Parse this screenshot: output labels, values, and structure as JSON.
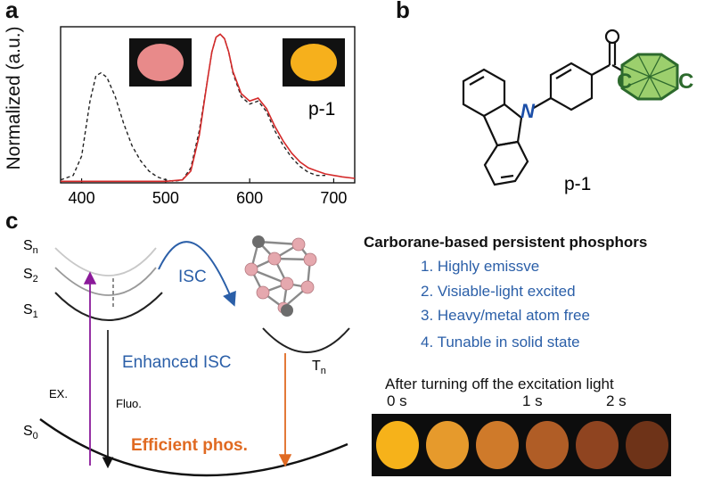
{
  "panel_a": {
    "letter": "a",
    "ylabel": "Normalized  (a.u.)",
    "sample_label": "p-1",
    "colors": {
      "emission": "#d42a2a",
      "excitation": "#222222",
      "pink_powder": "#e88a8a",
      "yellow_powder": "#f6b01c"
    }
  },
  "panel_b": {
    "letter": "b",
    "compound_label": "p-1",
    "colors": {
      "nitrogen": "#1c4fa8",
      "carborane_fill": "#9ccf6d",
      "carborane_edge": "#2d6a2d"
    }
  },
  "panel_c": {
    "letter": "c",
    "states": {
      "sn": "S",
      "sn_sub": "n",
      "s2": "S",
      "s2_sub": "2",
      "s1": "S",
      "s1_sub": "1",
      "s0": "S",
      "s0_sub": "0",
      "tn": "T",
      "tn_sub": "n"
    },
    "labels": {
      "isc": "ISC",
      "enhanced_isc": "Enhanced ISC",
      "ex": "EX.",
      "fluo": "Fluo.",
      "phos": "Efficient phos."
    },
    "colors": {
      "isc": "#2b5fa8",
      "ex": "#8b1a9a",
      "phos": "#e06a22"
    },
    "title": "Carborane-based persistent phosphors",
    "properties": [
      "1. Highly emissve",
      "2. Visiable-light excited",
      "3. Heavy/metal atom free",
      "4. Tunable in solid state"
    ],
    "afterglow_title": "After turning off the excitation light",
    "time_labels": [
      "0 s",
      "1 s",
      "2 s"
    ],
    "afterglow_colors": [
      "#f6b21a",
      "#e69a2c",
      "#cf7a2a",
      "#b05d26",
      "#8f4420",
      "#6e3318"
    ]
  },
  "chart_data": {
    "type": "line",
    "xlim": [
      375,
      725
    ],
    "ylim": [
      0,
      1.05
    ],
    "xticks": [
      400,
      500,
      600,
      700
    ],
    "series": [
      {
        "style": "dashed",
        "color": "#222222",
        "x": [
          375,
          390,
          400,
          410,
          417,
          423,
          430,
          440,
          450,
          460,
          470,
          480,
          490,
          500,
          510,
          520,
          530,
          540,
          550,
          555,
          560,
          565,
          570,
          575,
          580,
          590,
          600,
          610,
          620,
          630,
          640,
          650,
          660,
          670,
          680,
          690
        ],
        "y": [
          0.02,
          0.05,
          0.18,
          0.55,
          0.72,
          0.74,
          0.71,
          0.58,
          0.4,
          0.25,
          0.15,
          0.08,
          0.04,
          0.02,
          0.01,
          0.02,
          0.1,
          0.35,
          0.7,
          0.88,
          0.98,
          1.0,
          0.97,
          0.88,
          0.74,
          0.58,
          0.53,
          0.55,
          0.48,
          0.35,
          0.25,
          0.17,
          0.11,
          0.07,
          0.05,
          0.05
        ]
      },
      {
        "style": "solid",
        "color": "#d42a2a",
        "x": [
          375,
          500,
          520,
          530,
          540,
          550,
          555,
          560,
          565,
          570,
          575,
          580,
          590,
          600,
          610,
          620,
          630,
          640,
          650,
          660,
          670,
          680,
          690,
          700,
          710,
          725
        ],
        "y": [
          0.01,
          0.01,
          0.02,
          0.08,
          0.32,
          0.7,
          0.88,
          0.98,
          1.0,
          0.97,
          0.88,
          0.75,
          0.6,
          0.55,
          0.57,
          0.5,
          0.38,
          0.28,
          0.2,
          0.14,
          0.1,
          0.08,
          0.06,
          0.05,
          0.04,
          0.03
        ]
      }
    ]
  }
}
